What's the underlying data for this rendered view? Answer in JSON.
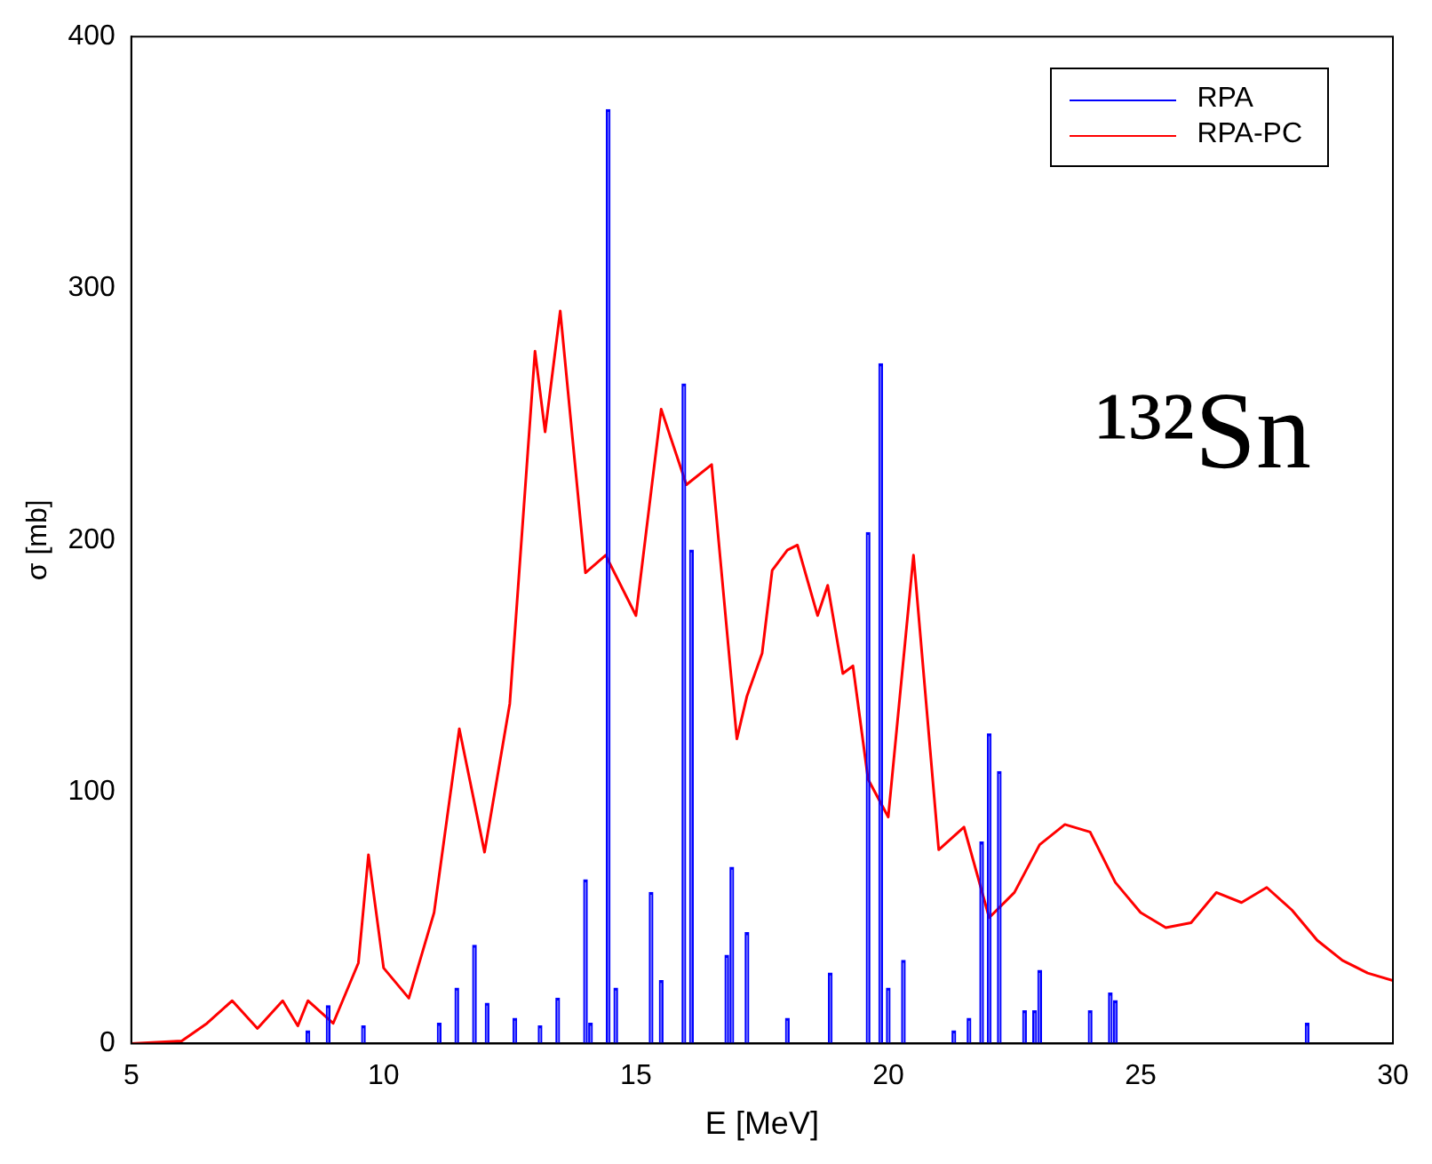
{
  "chart_data": {
    "type": "line",
    "xlabel": "E [MeV]",
    "ylabel": "σ [mb]",
    "xlim": [
      5,
      30
    ],
    "xticks": [
      5,
      10,
      15,
      20,
      25,
      30
    ],
    "ylim": [
      0,
      400
    ],
    "yticks": [
      0,
      100,
      200,
      300,
      400
    ],
    "grid": false,
    "legend": "top right",
    "marker": "none",
    "annotations": [
      "¹³²Sn"
    ],
    "series": [
      {
        "name": "RPA",
        "type": "bar",
        "color": "#0000ff",
        "x": [
          8.5,
          8.9,
          9.6,
          11.1,
          11.45,
          11.8,
          12.05,
          12.6,
          13.1,
          13.45,
          14.0,
          14.1,
          14.45,
          14.6,
          15.3,
          15.5,
          15.95,
          16.1,
          16.8,
          16.9,
          17.2,
          18.0,
          18.85,
          19.6,
          19.85,
          20.0,
          20.3,
          21.3,
          21.6,
          21.85,
          22.0,
          22.2,
          22.7,
          22.9,
          23.0,
          24.0,
          24.4,
          24.5,
          28.3
        ],
        "values": [
          5,
          15,
          7,
          8,
          22,
          39,
          16,
          10,
          7,
          18,
          65,
          8,
          371,
          22,
          60,
          25,
          262,
          196,
          35,
          70,
          44,
          10,
          28,
          203,
          270,
          22,
          33,
          5,
          10,
          80,
          123,
          108,
          13,
          13,
          29,
          13,
          20,
          17,
          8
        ]
      },
      {
        "name": "RPA-PC",
        "color": "#ff0000",
        "x": [
          5,
          6,
          6.5,
          7,
          7.5,
          8,
          8.3,
          8.5,
          9,
          9.5,
          9.7,
          10,
          10.5,
          11,
          11.5,
          12,
          12.5,
          13,
          13.2,
          13.5,
          14,
          14.4,
          15,
          15.5,
          16,
          16.5,
          17,
          17.2,
          17.5,
          17.7,
          18,
          18.2,
          18.6,
          18.8,
          19.1,
          19.3,
          19.6,
          20,
          20.5,
          21,
          21.5,
          22,
          22.5,
          23,
          23.5,
          24,
          24.5,
          25,
          25.5,
          26,
          26.5,
          27,
          27.5,
          28,
          28.5,
          29,
          29.5,
          30
        ],
        "values": [
          0,
          1,
          8,
          17,
          6,
          17,
          7,
          17,
          8,
          32,
          75,
          30,
          18,
          52,
          125,
          76,
          135,
          275,
          243,
          291,
          187,
          194,
          170,
          252,
          222,
          230,
          121,
          138,
          155,
          188,
          196,
          198,
          170,
          182,
          147,
          150,
          105,
          90,
          194,
          77,
          86,
          50,
          60,
          79,
          87,
          84,
          64,
          52,
          46,
          48,
          60,
          56,
          62,
          53,
          41,
          33,
          28,
          25
        ]
      }
    ]
  }
}
